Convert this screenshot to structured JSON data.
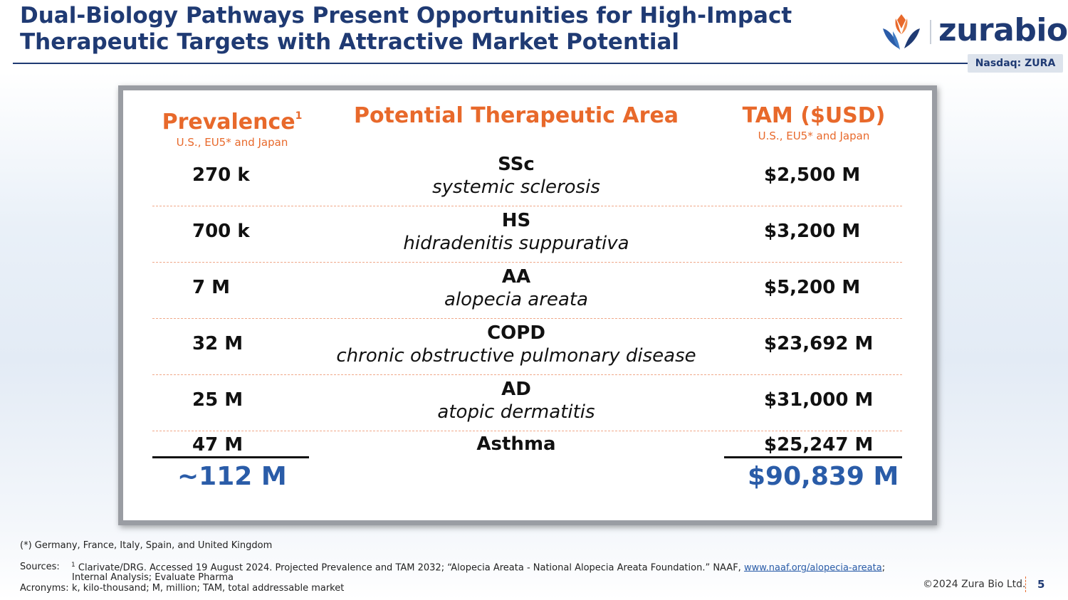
{
  "header": {
    "title_line1": "Dual-Biology Pathways Present Opportunities for High-Impact",
    "title_line2": "Therapeutic Targets with Attractive Market Potential",
    "logo_text": "zurabio",
    "ticker": "Nasdaq: ZURA"
  },
  "table": {
    "col_prevalence": {
      "title": "Prevalence",
      "superscript": "1",
      "subtitle": "U.S., EU5* and Japan"
    },
    "col_area": {
      "title": "Potential Therapeutic Area"
    },
    "col_tam": {
      "title": "TAM ($USD)",
      "subtitle": "U.S., EU5* and Japan"
    },
    "rows": [
      {
        "prevalence": "270 k",
        "abbr": "SSc",
        "name": "systemic sclerosis",
        "tam": "$2,500 M"
      },
      {
        "prevalence": "700 k",
        "abbr": "HS",
        "name": "hidradenitis suppurativa",
        "tam": "$3,200 M"
      },
      {
        "prevalence": "7 M",
        "abbr": "AA",
        "name": "alopecia areata",
        "tam": "$5,200 M"
      },
      {
        "prevalence": "32 M",
        "abbr": "COPD",
        "name": "chronic obstructive pulmonary disease",
        "tam": "$23,692 M"
      },
      {
        "prevalence": "25 M",
        "abbr": "AD",
        "name": "atopic dermatitis",
        "tam": "$31,000 M"
      },
      {
        "prevalence": "47 M",
        "abbr": "Asthma",
        "name": "",
        "tam": "$25,247 M"
      }
    ],
    "total_prevalence": "~112 M",
    "total_tam": "$90,839 M"
  },
  "footer": {
    "note": "(*) Germany, France, Italy, Spain, and United Kingdom",
    "sources_label": "Sources:",
    "sources_sup": "1",
    "sources_text": "Clarivate/DRG. Accessed 19 August 2024. Projected Prevalence and TAM 2032; “Alopecia Areata - National Alopecia Areata Foundation.” NAAF,",
    "sources_link": "www.naaf.org/alopecia-areata",
    "sources_tail": ";",
    "sources_line2": "Internal Analysis;  Evaluate Pharma",
    "acronyms_label": "Acronyms:",
    "acronyms_text": "k, kilo-thousand; M, million; TAM, total addressable market",
    "copyright": "©2024 Zura Bio Ltd.",
    "page_number": "5"
  },
  "colors": {
    "navy": "#1f3a73",
    "orange": "#e8692b",
    "blue": "#2a5ca8"
  }
}
